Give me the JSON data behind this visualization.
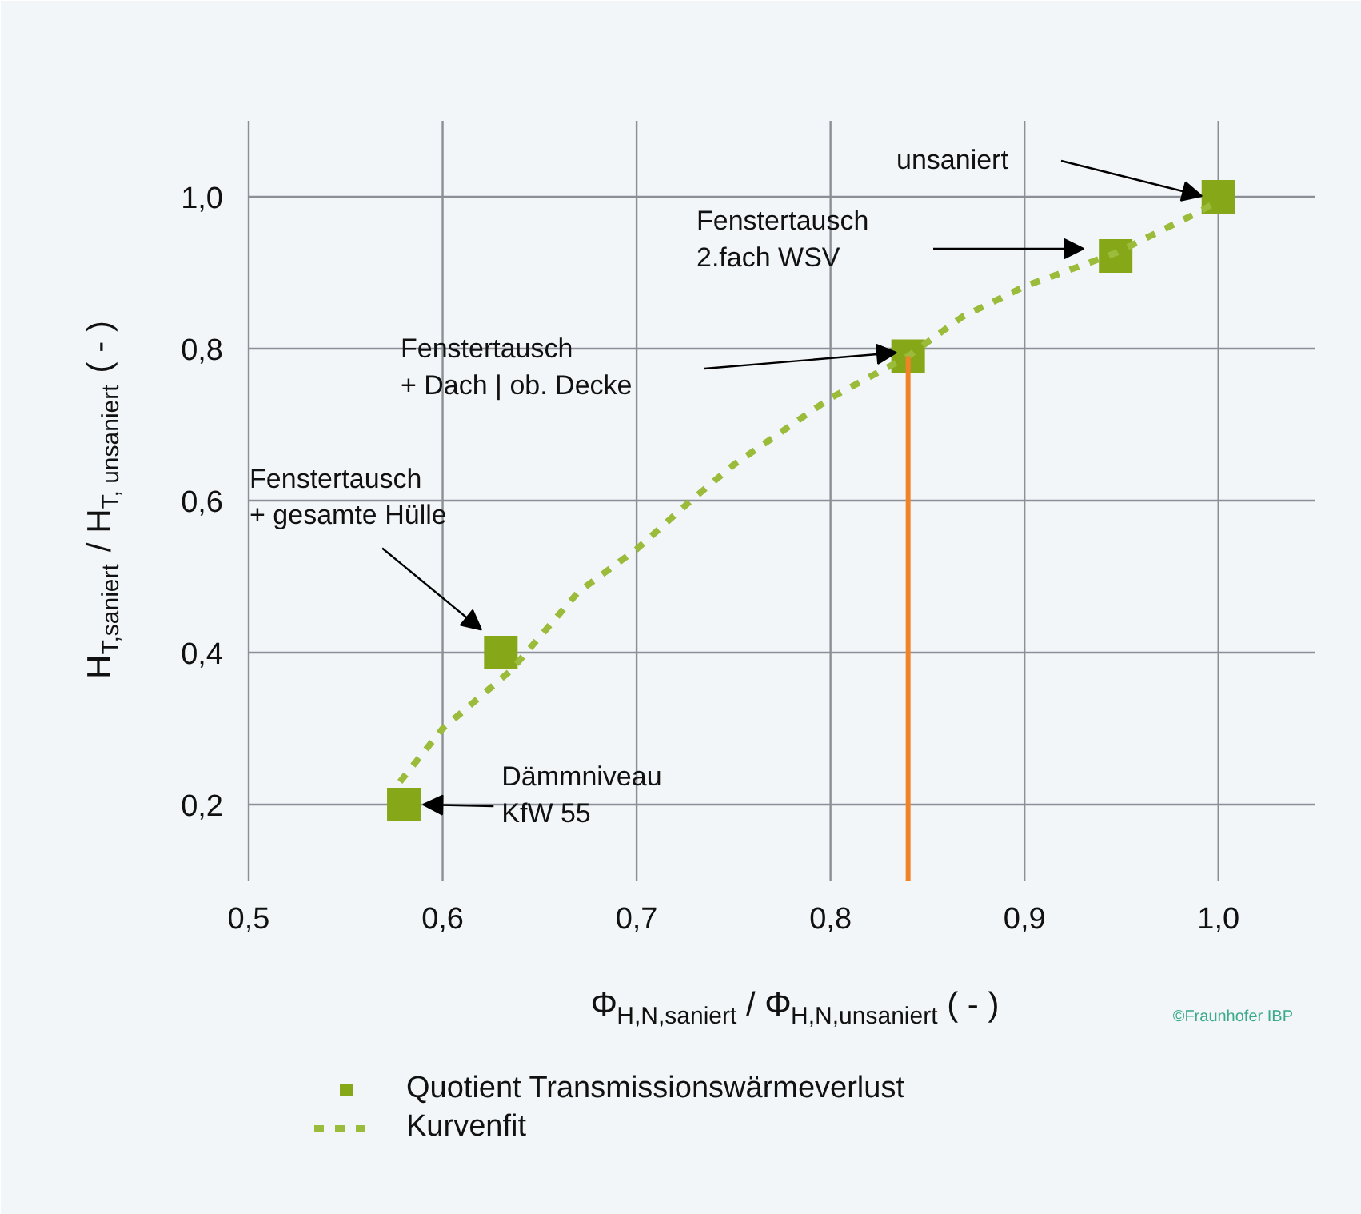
{
  "chart_data": {
    "type": "scatter",
    "xlabel": "Φ$_{H,N,saniert}$ / Φ$_{H,N,unsaniert}$ ( - )",
    "ylabel": "H$_{T,saniert}$ / H$_{T, unsaniert}$ ( - )",
    "xlim": [
      0.5,
      1.05
    ],
    "ylim": [
      0.1,
      1.1
    ],
    "xticks": [
      {
        "value": 0.5,
        "label": "0,5"
      },
      {
        "value": 0.6,
        "label": "0,6"
      },
      {
        "value": 0.7,
        "label": "0,7"
      },
      {
        "value": 0.8,
        "label": "0,8"
      },
      {
        "value": 0.9,
        "label": "0,9"
      },
      {
        "value": 1.0,
        "label": "1,0"
      }
    ],
    "yticks": [
      {
        "value": 0.2,
        "label": "0,2"
      },
      {
        "value": 0.4,
        "label": "0,4"
      },
      {
        "value": 0.6,
        "label": "0,6"
      },
      {
        "value": 0.8,
        "label": "0,8"
      },
      {
        "value": 1.0,
        "label": "1,0"
      }
    ],
    "grid": true,
    "legend": "bottom",
    "series": [
      {
        "name": "Quotient Transmissionswärmeverlust",
        "type": "scatter",
        "marker": "square",
        "color": "#86a818",
        "x": [
          0.58,
          0.63,
          0.84,
          0.947,
          1.0
        ],
        "values": [
          0.2,
          0.4,
          0.79,
          0.922,
          1.0
        ]
      },
      {
        "name": "Kurvenfit",
        "type": "line",
        "line_style": "dashed",
        "color": "#9bbb3a",
        "x": [
          0.578,
          0.6,
          0.635,
          0.67,
          0.7,
          0.728,
          0.75,
          0.8,
          0.84,
          0.868,
          0.9,
          0.947,
          0.99,
          1.0
        ],
        "values": [
          0.23,
          0.3,
          0.376,
          0.48,
          0.536,
          0.6,
          0.647,
          0.735,
          0.79,
          0.842,
          0.882,
          0.926,
          0.98,
          0.995
        ]
      }
    ],
    "annotations": [
      "unsaniert",
      "Fenstertausch\n2.fach WSV",
      "Fenstertausch\n+ Dach | ob. Decke",
      {
        "text": "Fenstertausch\n+ gesamte Hülle",
        "x": 0.62,
        "y": 0.43
      },
      {
        "text": "Dämmniveau\nKfW 55",
        "x": 0.59,
        "y": 0.2
      },
      "©Fraunhofer IBP"
    ],
    "ref_lines": [
      {
        "axis": "x",
        "value": 0.84,
        "color": "#f08228"
      }
    ]
  }
}
